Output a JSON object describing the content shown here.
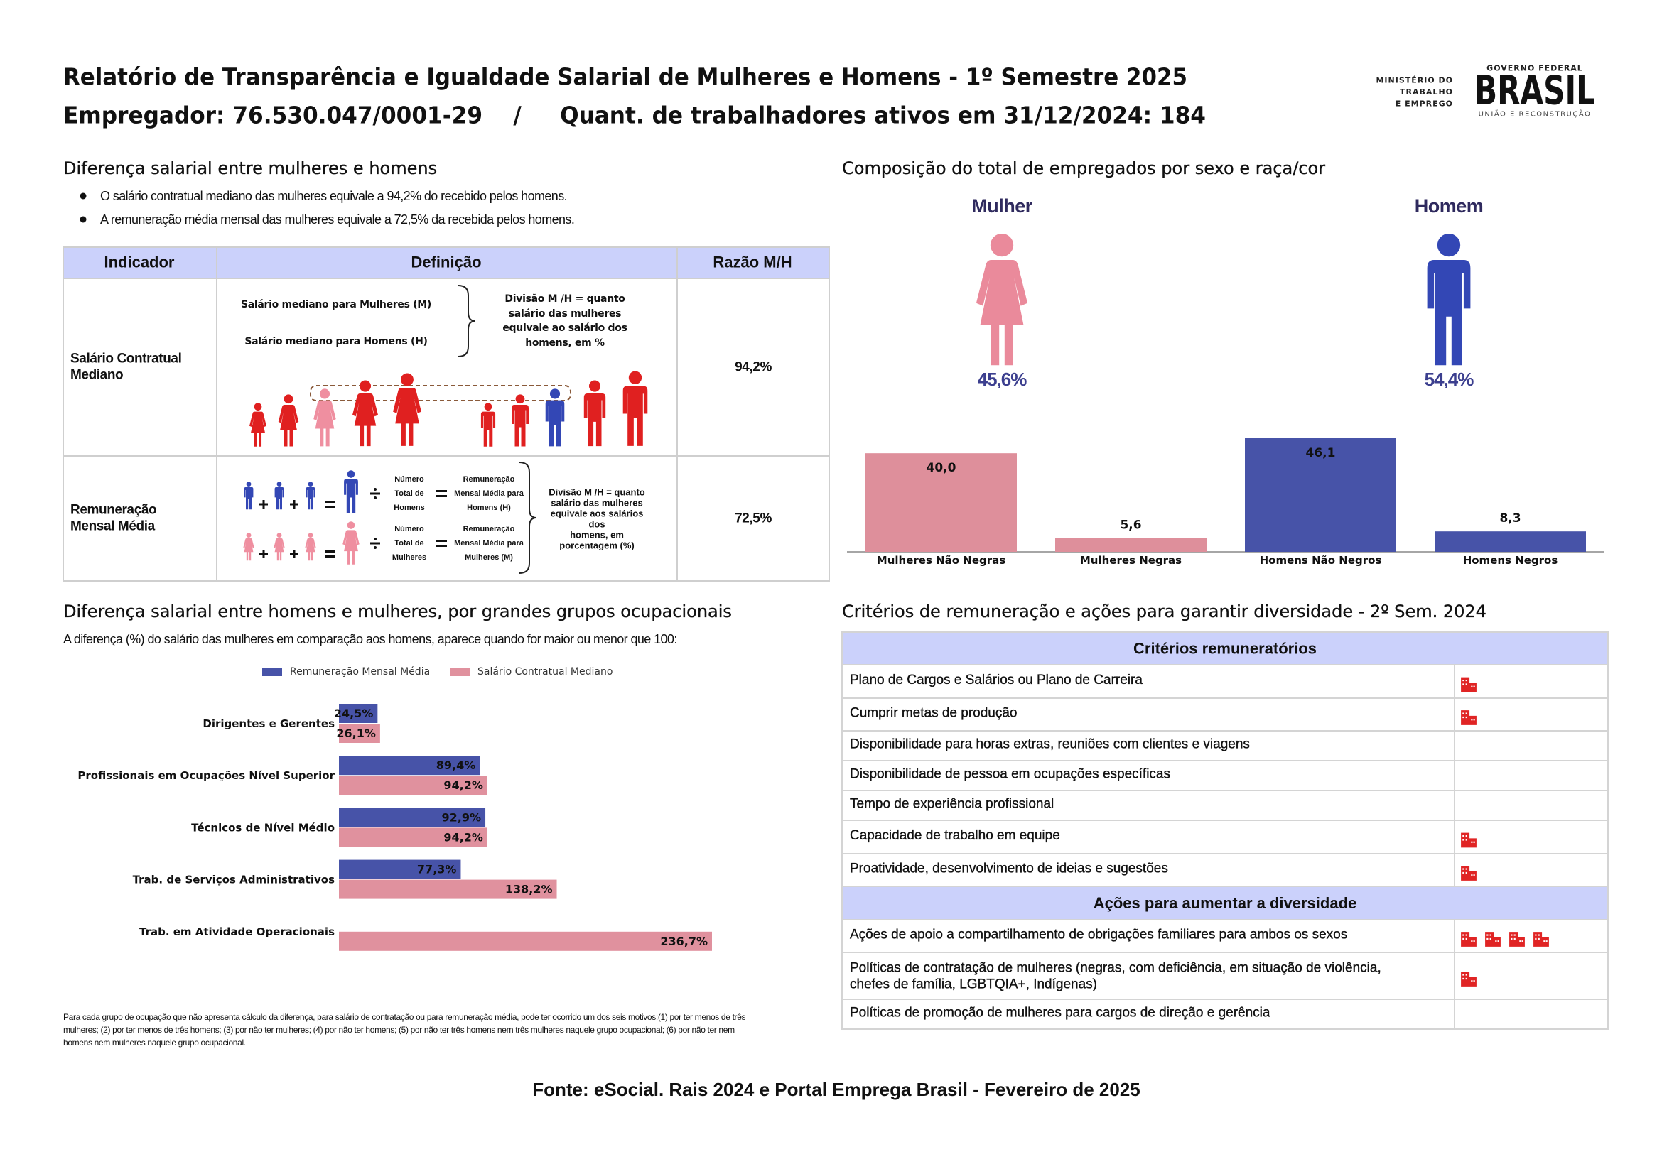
{
  "header": {
    "title": "Relatório de Transparência e Igualdade Salarial de Mulheres e Homens - 1º Semestre 2025",
    "subtitle": "Empregador: 76.530.047/0001-29    /     Quant. de trabalhadores ativos em 31/12/2024: 184",
    "logo": {
      "ministry": [
        "MINISTÉRIO DO",
        "TRABALHO",
        "E EMPREGO"
      ],
      "government": "GOVERNO FEDERAL",
      "brand": "BRASIL",
      "slogan": "UNIÃO E RECONSTRUÇÃO"
    }
  },
  "salary_gap": {
    "title": "Diferença salarial entre mulheres e homens",
    "bullets": [
      "O salário contratual mediano das mulheres equivale a 94,2% do recebido pelos homens.",
      "A remuneração média mensal das mulheres equivale a 72,5% da recebida pelos homens."
    ],
    "table": {
      "headers": [
        "Indicador",
        "Definição",
        "Razão M/H"
      ],
      "rows": [
        {
          "indicator": [
            "Salário Contratual",
            "Mediano"
          ],
          "definition": {
            "lines": [
              "Salário mediano para Mulheres (M)",
              "Salário mediano para Homens (H)"
            ],
            "note": [
              "Divisão M /H = quanto",
              "salário das mulheres",
              "equivale ao salário dos",
              "homens, em %"
            ]
          },
          "ratio": "94,2%"
        },
        {
          "indicator": [
            "Remuneração",
            "Mensal Média"
          ],
          "definition": {
            "men_count": [
              "Número",
              "Total de",
              "Homens"
            ],
            "men_pay": [
              "Remuneração",
              "Mensal Média para",
              "Homens (H)"
            ],
            "women_count": [
              "Número",
              "Total de",
              "Mulheres"
            ],
            "women_pay": [
              "Remuneração",
              "Mensal Média para",
              "Mulheres (M)"
            ],
            "note": [
              "Divisão M /H = quanto",
              "salário das mulheres",
              "equivale aos salários",
              "dos",
              "homens, em",
              "porcentagem (%)"
            ]
          },
          "ratio": "72,5%"
        }
      ]
    }
  },
  "composition": {
    "title": "Composição do total de empregados por sexo e raça/cor",
    "female_label": "Mulher",
    "male_label": "Homem",
    "female_share": "45,6%",
    "male_share": "54,4%"
  },
  "groups": {
    "title": "Diferença salarial entre homens e mulheres, por grandes grupos ocupacionais",
    "subtitle": "A diferença (%) do salário das mulheres em comparação aos homens, aparece quando for maior ou menor que 100:",
    "footnote": [
      "Para cada grupo de ocupação que não apresenta cálculo da diferença, para salário de contratação ou para remuneração média, pode ter ocorrido um dos seis motivos:(1) por ter menos de três",
      "mulheres; (2) por ter menos de três homens; (3) por não ter mulheres; (4) por não ter homens; (5) por não ter três homens nem três mulheres naquele grupo ocupacional; (6) por não ter nem",
      "homens nem mulheres naquele grupo ocupacional."
    ]
  },
  "chart_data": [
    {
      "type": "bar",
      "categories": [
        "Mulheres Não Negras",
        "Mulheres Negras",
        "Homens Não Negros",
        "Homens Negros"
      ],
      "values": [
        40.0,
        5.6,
        46.1,
        8.3
      ],
      "value_labels": [
        "40,0",
        "5,6",
        "46,1",
        "8,3"
      ],
      "colors": [
        "#de8f9b",
        "#de8f9b",
        "#4753a8",
        "#4753a8"
      ]
    },
    {
      "type": "hbar",
      "categories": [
        "Dirigentes e Gerentes",
        "Profissionais em Ocupações Nível Superior",
        "Técnicos de Nível Médio",
        "Trab. de Serviços Administrativos",
        "Trab. em Atividade Operacionais"
      ],
      "series": [
        {
          "name": "Remuneração Mensal Média",
          "color": "#4753a8",
          "values": [
            24.5,
            89.4,
            92.9,
            77.3,
            null
          ],
          "value_labels": [
            "24,5%",
            "89,4%",
            "92,9%",
            "77,3%",
            null
          ]
        },
        {
          "name": "Salário Contratual Mediano",
          "color": "#e0919e",
          "values": [
            26.1,
            94.2,
            94.2,
            138.2,
            236.7
          ],
          "value_labels": [
            "26,1%",
            "94,2%",
            "94,2%",
            "138,2%",
            "236,7%"
          ]
        }
      ],
      "legend": "top"
    }
  ],
  "criteria": {
    "title": "Critérios de remuneração e ações para garantir diversidade - 2º Sem. 2024",
    "remuneration": {
      "title": "Critérios remuneratórios",
      "items": [
        "Plano de Cargos e Salários ou Plano de Carreira",
        "Cumprir metas de produção",
        "Disponibilidade para horas extras, reuniões com clientes e viagens",
        "Disponibilidade de pessoa em ocupações específicas",
        "Tempo de experiência profissional",
        "Capacidade de trabalho em equipe",
        "Proatividade, desenvolvimento de ideias e sugestões"
      ]
    },
    "actions": {
      "title": "Ações para aumentar a diversidade",
      "items": [
        "Ações de apoio a compartilhamento de obrigações familiares para ambos os sexos",
        [
          "Políticas de contratação de mulheres (negras, com deficiência, em situação de violência,",
          "chefes de família, LGBTQIA+, Indígenas)"
        ],
        "Políticas de promoção de mulheres para cargos de direção e gerência"
      ]
    }
  },
  "source": "Fonte: eSocial. Rais 2024 e Portal Emprega Brasil - Fevereiro de 2025"
}
